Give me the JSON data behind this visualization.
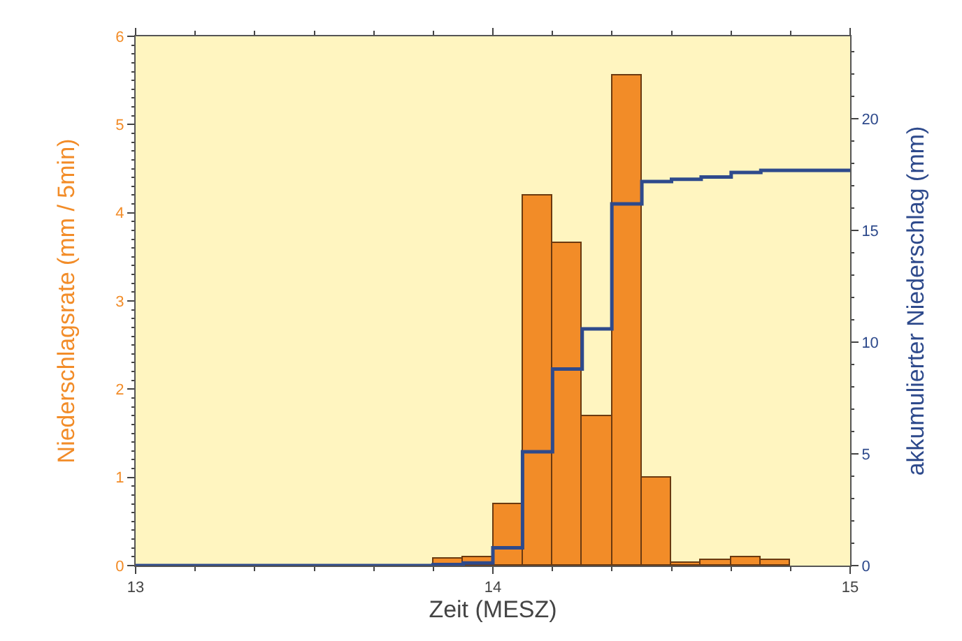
{
  "chart_data": {
    "type": "histogram",
    "xlabel": "Zeit (MESZ)",
    "ylabel": "Niederschlagsrate (mm / 5min)",
    "y2label": "akkumulierter Niederschlag (mm)",
    "bins": [
      13.833,
      13.917,
      14,
      14.083,
      14.167,
      14.25,
      14.333,
      14.417,
      14.5,
      14.583,
      14.667,
      14.75,
      14.833
    ],
    "values": [
      0.08,
      0.1,
      0.7,
      4.2,
      3.65,
      1.7,
      5.55,
      1.0,
      0.03,
      0.06,
      0.09,
      0.07
    ],
    "color": "#f28c28",
    "series": [
      {
        "type": "step",
        "axis": "y2",
        "color": "#2e4a8c",
        "x": [
          13,
          13.833,
          13.917,
          14,
          14.083,
          14.167,
          14.25,
          14.333,
          14.417,
          14.5,
          14.583,
          14.667,
          14.75,
          15
        ],
        "values": [
          0,
          0.05,
          0.12,
          0.8,
          5.1,
          8.8,
          10.6,
          16.2,
          17.2,
          17.3,
          17.4,
          17.6,
          17.7,
          17.7
        ]
      }
    ],
    "xlim": [
      13,
      15
    ],
    "xticks": [
      13,
      14,
      15
    ],
    "ylim": [
      0,
      6
    ],
    "yticks": [
      0,
      1,
      2,
      3,
      4,
      5,
      6
    ],
    "y2lim": [
      0,
      23.7
    ],
    "y2ticks": [
      0,
      5,
      10,
      15,
      20
    ]
  }
}
